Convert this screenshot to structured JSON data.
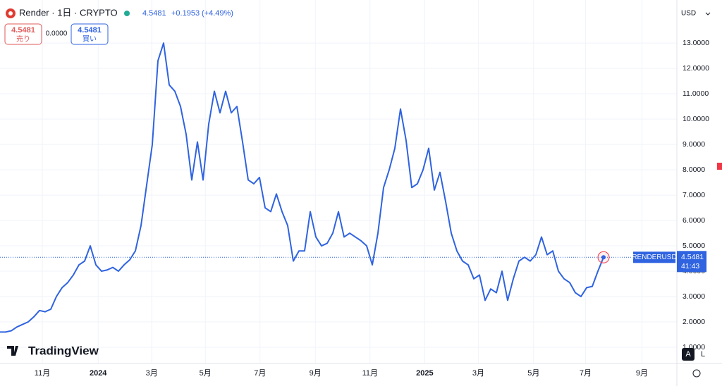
{
  "header": {
    "symbol": "Render · 1日 · CRYPTO",
    "last": "4.5481",
    "change": "+0.1953",
    "change_percent": "(+4.49%)",
    "sell_price": "4.5481",
    "sell_label": "売り",
    "spread": "0.0000",
    "buy_price": "4.5481",
    "buy_label": "買い",
    "currency": "USD",
    "logo": "TradingView",
    "scale_auto": "A",
    "scale_log": "L"
  },
  "chart_data": {
    "type": "line",
    "series": [
      {
        "name": "RENDERUSD",
        "color": "#2f63e0",
        "values": [
          1.6,
          1.6,
          1.65,
          1.8,
          1.9,
          2.0,
          2.2,
          2.45,
          2.4,
          2.5,
          3.0,
          3.35,
          3.55,
          3.85,
          4.25,
          4.4,
          5.0,
          4.25,
          4.0,
          4.05,
          4.15,
          4.0,
          4.25,
          4.45,
          4.8,
          5.8,
          7.4,
          9.0,
          12.3,
          13.0,
          11.35,
          11.1,
          10.5,
          9.4,
          7.6,
          9.1,
          7.6,
          9.8,
          11.1,
          10.25,
          11.1,
          10.25,
          10.5,
          9.1,
          7.6,
          7.45,
          7.7,
          6.5,
          6.35,
          7.05,
          6.35,
          5.8,
          4.4,
          4.8,
          4.8,
          6.35,
          5.35,
          5.0,
          5.1,
          5.5,
          6.35,
          5.35,
          5.5,
          5.35,
          5.2,
          5.0,
          4.25,
          5.5,
          7.3,
          8.0,
          8.85,
          10.4,
          9.15,
          7.3,
          7.45,
          8.0,
          8.85,
          7.2,
          7.9,
          6.75,
          5.5,
          4.8,
          4.4,
          4.25,
          3.7,
          3.85,
          2.85,
          3.3,
          3.15,
          4.0,
          2.85,
          3.7,
          4.4,
          4.55,
          4.4,
          4.65,
          5.35,
          4.65,
          4.8,
          4.0,
          3.7,
          3.55,
          3.15,
          3.0,
          3.35,
          3.4,
          4.0,
          4.5481
        ]
      }
    ],
    "last_time": "41:43",
    "xlim": [
      0,
      120
    ],
    "xticks": [
      {
        "value": 7.5,
        "label": "11月"
      },
      {
        "value": 17.4,
        "label": "2024"
      },
      {
        "value": 26.9,
        "label": "3月"
      },
      {
        "value": 36.4,
        "label": "5月"
      },
      {
        "value": 46.1,
        "label": "7月"
      },
      {
        "value": 55.9,
        "label": "9月"
      },
      {
        "value": 65.6,
        "label": "11月"
      },
      {
        "value": 75.3,
        "label": "2025"
      },
      {
        "value": 84.8,
        "label": "3月"
      },
      {
        "value": 94.6,
        "label": "5月"
      },
      {
        "value": 103.8,
        "label": "7月"
      },
      {
        "value": 113.8,
        "label": "9月"
      }
    ],
    "ylim": [
      0.36,
      14.7
    ],
    "yticks": [
      {
        "value": 1,
        "label": "1.0000"
      },
      {
        "value": 2,
        "label": "2.0000"
      },
      {
        "value": 3,
        "label": "3.0000"
      },
      {
        "value": 4,
        "label": "4.0000"
      },
      {
        "value": 5,
        "label": "5.0000"
      },
      {
        "value": 6,
        "label": "6.0000"
      },
      {
        "value": 7,
        "label": "7.0000"
      },
      {
        "value": 8,
        "label": "8.0000"
      },
      {
        "value": 9,
        "label": "9.0000"
      },
      {
        "value": 10,
        "label": "10.0000"
      },
      {
        "value": 11,
        "label": "11.0000"
      },
      {
        "value": 12,
        "label": "12.0000"
      },
      {
        "value": 13,
        "label": "13.0000"
      }
    ],
    "grid": true
  }
}
